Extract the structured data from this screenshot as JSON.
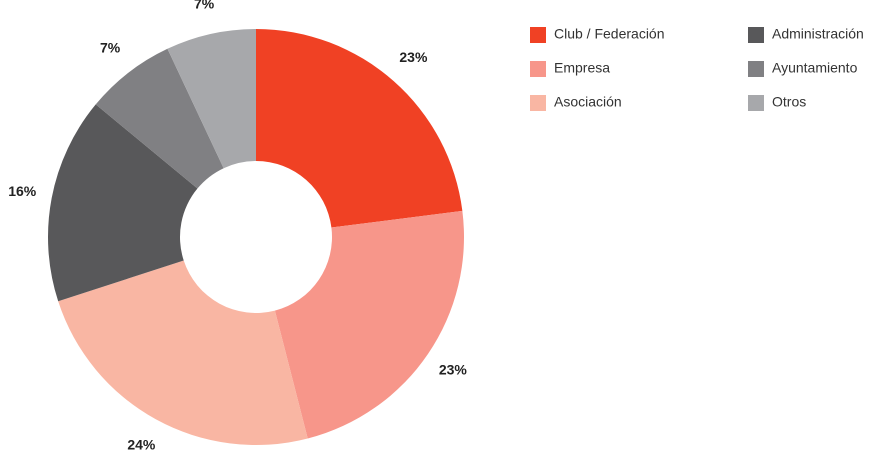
{
  "chart_data": {
    "type": "donut",
    "categories": [
      "Club / Federación",
      "Empresa",
      "Asociación",
      "Administración",
      "Ayuntamiento",
      "Otros"
    ],
    "values": [
      23,
      23,
      24,
      16,
      7,
      7
    ],
    "value_labels": [
      "23%",
      "23%",
      "24%",
      "16%",
      "7%",
      "7%"
    ],
    "colors": [
      "#f04124",
      "#f7968a",
      "#f9b6a3",
      "#58585a",
      "#808083",
      "#a7a8ab"
    ],
    "legend": "top-right"
  }
}
